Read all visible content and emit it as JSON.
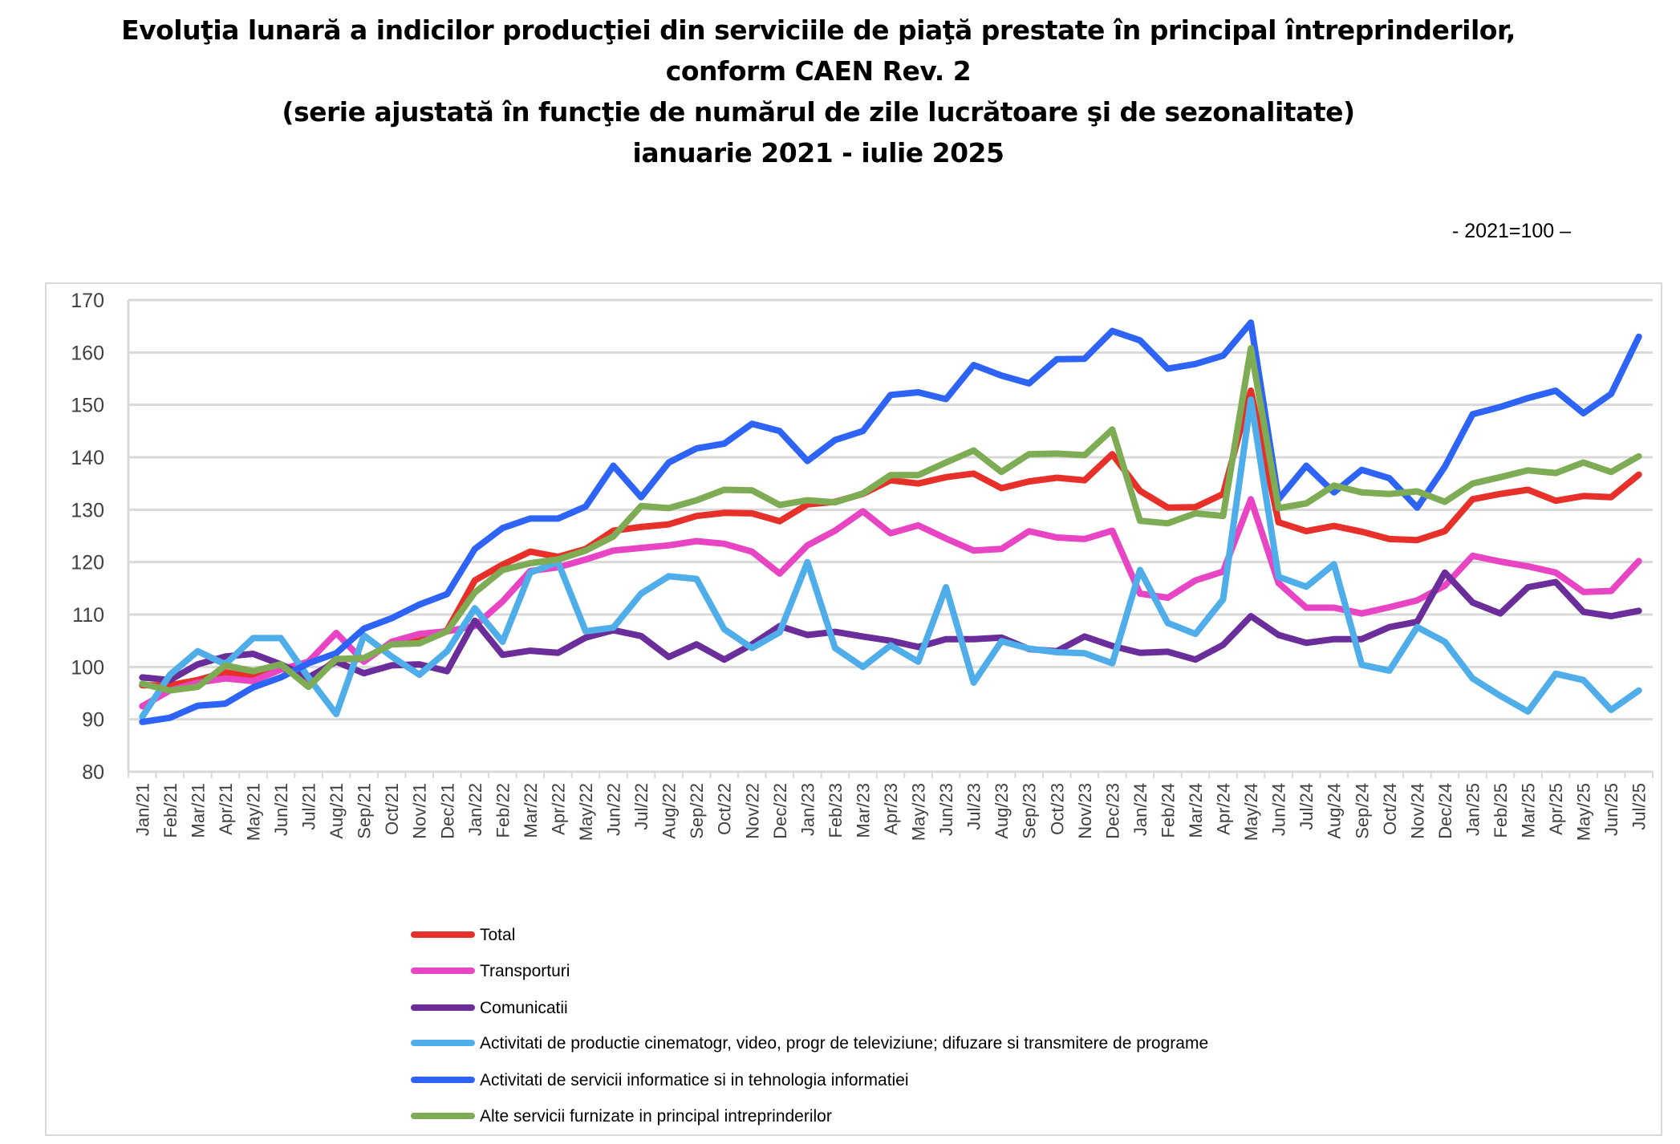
{
  "title_lines": [
    "Evoluţia lunară a indicilor producţiei din serviciile de piaţă prestate în principal întreprinderilor,",
    "conform CAEN Rev. 2",
    "(serie ajustată în funcţie de numărul de zile lucrătoare şi de sezonalitate)",
    "ianuarie 2021 - iulie 2025"
  ],
  "base_note": "- 2021=100 –",
  "chart_data": {
    "type": "line",
    "title": "Evoluţia lunară a indicilor producţiei din serviciile de piaţă prestate în principal întreprinderilor, conform CAEN Rev. 2 (serie ajustată în funcţie de numărul de zile lucrătoare şi de sezonalitate) ianuarie 2021 - iulie 2025",
    "ylim": [
      80,
      170
    ],
    "yticks": [
      80,
      90,
      100,
      110,
      120,
      130,
      140,
      150,
      160,
      170
    ],
    "grid": true,
    "legend_position": "bottom",
    "categories": [
      "Jan/21",
      "Feb/21",
      "Mar/21",
      "Apr/21",
      "May/21",
      "Jun/21",
      "Jul/21",
      "Aug/21",
      "Sep/21",
      "Oct/21",
      "Nov/21",
      "Dec/21",
      "Jan/22",
      "Feb/22",
      "Mar/22",
      "Apr/22",
      "May/22",
      "Jun/22",
      "Jul/22",
      "Aug/22",
      "Sep/22",
      "Oct/22",
      "Nov/22",
      "Dec/22",
      "Jan/23",
      "Feb/23",
      "Mar/23",
      "Apr/23",
      "May/23",
      "Jun/23",
      "Jul/23",
      "Aug/23",
      "Sep/23",
      "Oct/23",
      "Nov/23",
      "Dec/23",
      "Jan/24",
      "Feb/24",
      "Mar/24",
      "Apr/24",
      "May/24",
      "Jun/24",
      "Jul/24",
      "Aug/24",
      "Sep/24",
      "Oct/24",
      "Nov/24",
      "Dec/24",
      "Jan/25",
      "Feb/25",
      "Mar/25",
      "Apr/25",
      "May/25",
      "Jun/25",
      "Jul/25"
    ],
    "series": [
      {
        "name": "Total",
        "color": "#e8302a",
        "values": [
          96.5,
          96.5,
          97.5,
          99,
          98,
          100,
          97,
          101.5,
          101.5,
          104.5,
          105,
          107,
          116.5,
          119.5,
          122,
          121,
          122.5,
          126,
          126.7,
          127.2,
          128.8,
          129.4,
          129.3,
          127.8,
          131,
          131.5,
          133,
          135.6,
          135,
          136.2,
          136.9,
          134.1,
          135.4,
          136.1,
          135.6,
          140.6,
          133.6,
          130.4,
          130.5,
          133,
          152.7,
          127.6,
          125.9,
          126.9,
          125.8,
          124.4,
          124.2,
          125.9,
          132,
          133,
          133.8,
          131.7,
          132.6,
          132.4,
          136.7
        ]
      },
      {
        "name": "Transporturi",
        "color": "#e845c4",
        "values": [
          92.5,
          95.5,
          97,
          97.8,
          97.3,
          99.5,
          101,
          106.5,
          101,
          104.8,
          106.3,
          106.8,
          107.8,
          112.5,
          118.3,
          119,
          120.5,
          122.2,
          122.7,
          123.2,
          124,
          123.5,
          122,
          117.8,
          123.2,
          126,
          129.7,
          125.5,
          127,
          124.5,
          122.2,
          122.5,
          125.9,
          124.7,
          124.4,
          126,
          114,
          113.2,
          116.5,
          118.2,
          132,
          116,
          111.3,
          111.3,
          110.2,
          111.4,
          112.7,
          115.5,
          121.2,
          120.1,
          119.2,
          118,
          114.3,
          114.5,
          120.2
        ]
      },
      {
        "name": "Comunicatii",
        "color": "#6a2d9a",
        "values": [
          98,
          97.5,
          100.5,
          102,
          102.5,
          100.5,
          98,
          101,
          98.8,
          100.3,
          100.5,
          99.2,
          108.8,
          102.3,
          103.1,
          102.7,
          105.6,
          107,
          105.9,
          101.9,
          104.3,
          101.4,
          104.3,
          107.8,
          106.1,
          106.7,
          105.8,
          105,
          103.8,
          105.3,
          105.3,
          105.6,
          103.4,
          103,
          105.8,
          104,
          102.7,
          102.9,
          101.4,
          104.2,
          109.7,
          106.1,
          104.6,
          105.3,
          105.3,
          107.6,
          108.6,
          118,
          112.3,
          110.2,
          115.2,
          116.2,
          110.5,
          109.7,
          110.7
        ]
      },
      {
        "name": "Activitati de productie cinematogr, video, progr de televiziune; difuzare si transmitere de programe",
        "color": "#4fadea",
        "values": [
          90.5,
          98.5,
          103,
          100.5,
          105.5,
          105.5,
          98,
          91,
          106,
          102,
          98.5,
          103,
          111.2,
          104.8,
          118,
          120,
          106.8,
          107.5,
          114,
          117.3,
          116.8,
          107.2,
          103.6,
          106.6,
          120,
          103.6,
          100,
          104.1,
          101,
          115.2,
          97,
          104.9,
          103.5,
          102.8,
          102.6,
          100.7,
          118.5,
          108.4,
          106.3,
          112.9,
          151,
          117.2,
          115.3,
          119.6,
          100.4,
          99.3,
          107.6,
          104.8,
          97.8,
          94.5,
          91.5,
          98.7,
          97.5,
          91.8,
          95.5
        ]
      },
      {
        "name": "Activitati de servicii informatice si in tehnologia informatiei",
        "color": "#2e64f5",
        "values": [
          89.5,
          90.3,
          92.6,
          93,
          96.1,
          98,
          100.7,
          102.6,
          107.3,
          109.3,
          111.9,
          113.9,
          122.5,
          126.5,
          128.3,
          128.3,
          130.6,
          138.4,
          132.4,
          139,
          141.7,
          142.6,
          146.4,
          145,
          139.3,
          143.3,
          145,
          151.9,
          152.4,
          151.1,
          157.6,
          155.6,
          154.1,
          158.7,
          158.8,
          164.1,
          162.3,
          156.9,
          157.8,
          159.4,
          165.7,
          132,
          138.4,
          133.3,
          137.6,
          136,
          130.4,
          138.2,
          148.2,
          149.6,
          151.3,
          152.7,
          148.4,
          152.1,
          163
        ]
      },
      {
        "name": "Alte servicii furnizate in principal intreprinderilor",
        "color": "#7eac55",
        "values": [
          96.8,
          95.5,
          96.2,
          100.3,
          99.2,
          100.5,
          96.2,
          101.5,
          101.7,
          104.3,
          104.5,
          106.8,
          114.2,
          118.5,
          119.8,
          120.5,
          122.2,
          124.9,
          130.7,
          130.3,
          131.8,
          133.8,
          133.7,
          130.9,
          131.8,
          131.4,
          133.1,
          136.6,
          136.6,
          139,
          141.3,
          137.2,
          140.6,
          140.7,
          140.4,
          145.3,
          127.9,
          127.4,
          129.3,
          128.8,
          160.8,
          130.3,
          131.2,
          134.6,
          133.3,
          133,
          133.5,
          131.5,
          135,
          136.2,
          137.5,
          137,
          139,
          137.2,
          140.2
        ]
      }
    ]
  }
}
